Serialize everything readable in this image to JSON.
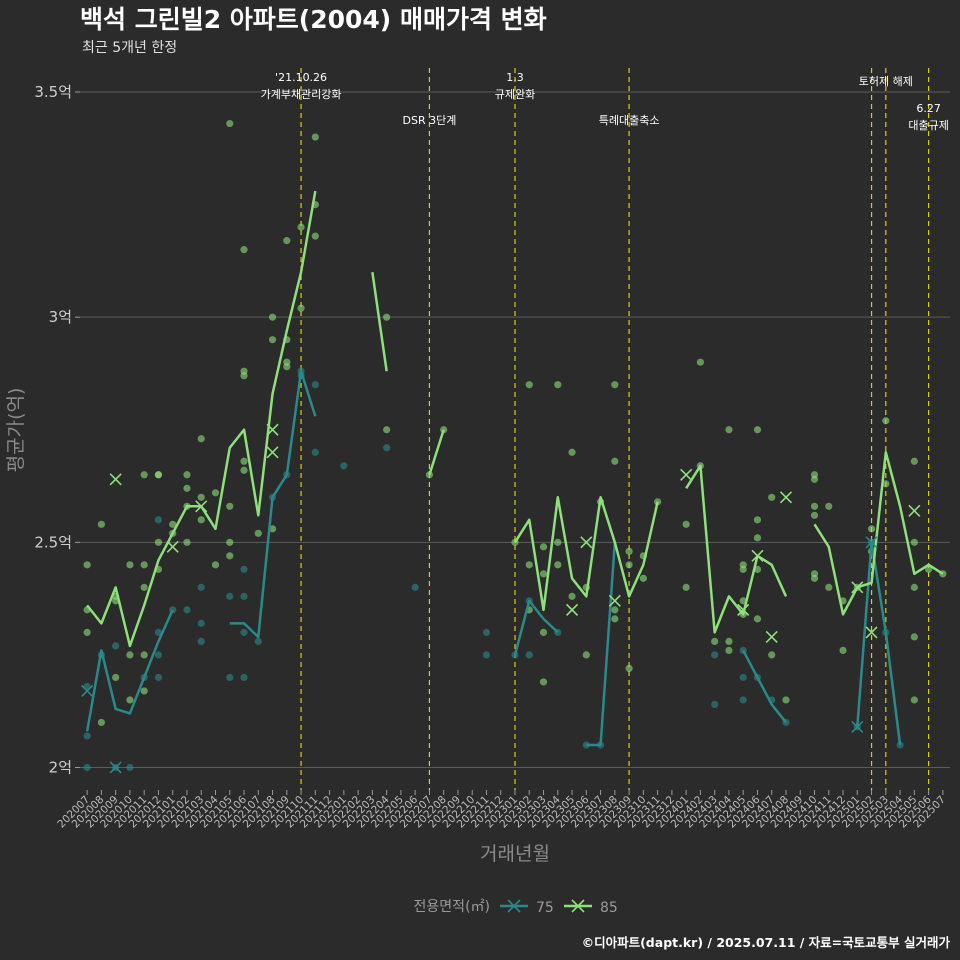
{
  "chart_data": {
    "type": "line",
    "title": "백석 그린빌2 아파트(2004) 매매가격 변화",
    "subtitle": "최근 5개년 한정",
    "xlabel": "거래년월",
    "ylabel": "평균가(억)",
    "categories": [
      "202007",
      "202008",
      "202009",
      "202010",
      "202011",
      "202012",
      "202101",
      "202102",
      "202103",
      "202104",
      "202105",
      "202106",
      "202107",
      "202108",
      "202109",
      "202110",
      "202111",
      "202112",
      "202201",
      "202202",
      "202203",
      "202204",
      "202205",
      "202206",
      "202207",
      "202208",
      "202209",
      "202210",
      "202211",
      "202212",
      "202301",
      "202302",
      "202303",
      "202304",
      "202305",
      "202306",
      "202307",
      "202308",
      "202309",
      "202310",
      "202311",
      "202312",
      "202401",
      "202402",
      "202403",
      "202404",
      "202405",
      "202406",
      "202407",
      "202408",
      "202409",
      "202410",
      "202411",
      "202412",
      "202501",
      "202502",
      "202503",
      "202504",
      "202505",
      "202506",
      "202507"
    ],
    "yticks": [
      {
        "value": 2.0,
        "label": "2억"
      },
      {
        "value": 2.5,
        "label": "2.5억"
      },
      {
        "value": 3.0,
        "label": "3억"
      },
      {
        "value": 3.5,
        "label": "3.5억"
      }
    ],
    "ylim": [
      1.95,
      3.56
    ],
    "grid": true,
    "legend": {
      "title": "전용면적(㎡)",
      "position": "bottom",
      "entries": [
        {
          "name": "75",
          "color": "#2a8a8a"
        },
        {
          "name": "85",
          "color": "#8ee07a"
        }
      ]
    },
    "events": [
      {
        "month": "202110",
        "lines": [
          "'21.10.26",
          "가계부채관리강화"
        ],
        "tier": 1
      },
      {
        "month": "202207",
        "lines": [
          "DSR 3단계"
        ],
        "tier": 2
      },
      {
        "month": "202301",
        "lines": [
          "1.3",
          "규제완화"
        ],
        "tier": 1
      },
      {
        "month": "202309",
        "lines": [
          "특례대출축소"
        ],
        "tier": 2
      },
      {
        "month": "202502",
        "lines": [],
        "tier": 1
      },
      {
        "month": "202503",
        "lines": [
          "토허제 해제"
        ],
        "tier": 1
      },
      {
        "month": "202506",
        "lines": [
          "6.27",
          "대출규제"
        ],
        "tier": 3
      }
    ],
    "series": [
      {
        "name": "75",
        "color": "#2a8a8a",
        "values": [
          2.08,
          2.26,
          2.13,
          2.12,
          2.2,
          2.28,
          2.35,
          null,
          2.35,
          null,
          2.32,
          2.32,
          2.29,
          2.6,
          2.65,
          2.88,
          2.78,
          null,
          null,
          null,
          null,
          null,
          null,
          null,
          null,
          null,
          null,
          null,
          null,
          null,
          2.25,
          2.37,
          2.33,
          2.3,
          null,
          2.05,
          2.05,
          2.5,
          null,
          null,
          null,
          null,
          null,
          null,
          2.2,
          null,
          2.26,
          2.2,
          2.14,
          2.1,
          null,
          null,
          null,
          null,
          2.09,
          2.5,
          2.3,
          2.05,
          null,
          null,
          null
        ],
        "markers": [
          [
            0,
            2.17
          ],
          [
            2,
            2.0
          ],
          [
            55,
            2.5
          ],
          [
            54,
            2.09
          ]
        ],
        "points": [
          [
            0,
            2.07
          ],
          [
            0,
            2.0
          ],
          [
            0,
            2.18
          ],
          [
            1,
            2.25
          ],
          [
            2,
            2.0
          ],
          [
            2,
            2.27
          ],
          [
            3,
            2.0
          ],
          [
            4,
            2.2
          ],
          [
            5,
            2.25
          ],
          [
            5,
            2.2
          ],
          [
            5,
            2.3
          ],
          [
            5,
            2.55
          ],
          [
            6,
            2.35
          ],
          [
            7,
            2.35
          ],
          [
            8,
            2.4
          ],
          [
            8,
            2.28
          ],
          [
            8,
            2.32
          ],
          [
            10,
            2.38
          ],
          [
            10,
            2.2
          ],
          [
            11,
            2.38
          ],
          [
            11,
            2.2
          ],
          [
            11,
            2.3
          ],
          [
            11,
            2.44
          ],
          [
            12,
            2.28
          ],
          [
            13,
            2.6
          ],
          [
            14,
            2.65
          ],
          [
            15,
            2.87
          ],
          [
            15,
            2.88
          ],
          [
            16,
            2.85
          ],
          [
            16,
            2.7
          ],
          [
            18,
            2.67
          ],
          [
            21,
            2.71
          ],
          [
            23,
            2.4
          ],
          [
            28,
            2.3
          ],
          [
            28,
            2.25
          ],
          [
            30,
            2.25
          ],
          [
            31,
            2.25
          ],
          [
            31,
            2.37
          ],
          [
            33,
            2.3
          ],
          [
            35,
            2.05
          ],
          [
            36,
            2.05
          ],
          [
            44,
            2.14
          ],
          [
            44,
            2.25
          ],
          [
            46,
            2.15
          ],
          [
            46,
            2.26
          ],
          [
            46,
            2.2
          ],
          [
            47,
            2.2
          ],
          [
            48,
            2.15
          ],
          [
            49,
            2.1
          ],
          [
            54,
            2.09
          ],
          [
            55,
            2.5
          ],
          [
            56,
            2.3
          ],
          [
            57,
            2.05
          ]
        ]
      },
      {
        "name": "85",
        "color": "#8ee07a",
        "values": [
          2.36,
          2.32,
          2.4,
          2.27,
          2.36,
          2.46,
          2.52,
          2.58,
          2.58,
          2.53,
          2.71,
          2.75,
          2.56,
          2.83,
          2.97,
          3.1,
          3.28,
          null,
          null,
          null,
          3.1,
          2.88,
          null,
          null,
          2.65,
          2.75,
          null,
          null,
          2.5,
          null,
          2.5,
          2.55,
          2.35,
          2.6,
          2.42,
          2.38,
          2.6,
          2.5,
          2.38,
          2.45,
          2.59,
          null,
          2.62,
          2.67,
          2.3,
          2.38,
          2.34,
          2.47,
          2.45,
          2.38,
          null,
          2.54,
          2.49,
          2.34,
          2.4,
          2.41,
          2.7,
          2.58,
          2.43,
          2.45,
          2.43
        ],
        "markers": [
          [
            2,
            2.64
          ],
          [
            6,
            2.49
          ],
          [
            8,
            2.58
          ],
          [
            13,
            2.75
          ],
          [
            13,
            2.7
          ],
          [
            34,
            2.35
          ],
          [
            35,
            2.5
          ],
          [
            37,
            2.37
          ],
          [
            42,
            2.65
          ],
          [
            46,
            2.35
          ],
          [
            47,
            2.47
          ],
          [
            48,
            2.29
          ],
          [
            49,
            2.6
          ],
          [
            54,
            2.4
          ],
          [
            55,
            2.3
          ],
          [
            58,
            2.57
          ]
        ],
        "points": [
          [
            0,
            2.45
          ],
          [
            0,
            2.3
          ],
          [
            0,
            2.35
          ],
          [
            1,
            2.54
          ],
          [
            1,
            2.1
          ],
          [
            2,
            2.38
          ],
          [
            2,
            2.37
          ],
          [
            2,
            2.2
          ],
          [
            3,
            2.45
          ],
          [
            3,
            2.25
          ],
          [
            3,
            2.15
          ],
          [
            4,
            2.45
          ],
          [
            4,
            2.4
          ],
          [
            4,
            2.65
          ],
          [
            4,
            2.25
          ],
          [
            4,
            2.17
          ],
          [
            5,
            2.65
          ],
          [
            5,
            2.65
          ],
          [
            5,
            2.5
          ],
          [
            5,
            2.44
          ],
          [
            6,
            2.54
          ],
          [
            6,
            2.52
          ],
          [
            7,
            2.65
          ],
          [
            7,
            2.62
          ],
          [
            7,
            2.58
          ],
          [
            7,
            2.5
          ],
          [
            8,
            2.73
          ],
          [
            8,
            2.55
          ],
          [
            8,
            2.6
          ],
          [
            9,
            2.61
          ],
          [
            9,
            2.45
          ],
          [
            10,
            3.43
          ],
          [
            10,
            2.58
          ],
          [
            10,
            2.5
          ],
          [
            10,
            2.47
          ],
          [
            11,
            3.15
          ],
          [
            11,
            2.88
          ],
          [
            11,
            2.87
          ],
          [
            11,
            2.68
          ],
          [
            11,
            2.66
          ],
          [
            12,
            2.52
          ],
          [
            13,
            3.0
          ],
          [
            13,
            2.95
          ],
          [
            13,
            2.53
          ],
          [
            14,
            3.17
          ],
          [
            14,
            2.95
          ],
          [
            14,
            2.9
          ],
          [
            14,
            2.89
          ],
          [
            15,
            3.2
          ],
          [
            15,
            3.02
          ],
          [
            16,
            3.4
          ],
          [
            16,
            3.25
          ],
          [
            16,
            3.18
          ],
          [
            21,
            3.0
          ],
          [
            21,
            2.75
          ],
          [
            24,
            2.65
          ],
          [
            25,
            2.75
          ],
          [
            30,
            2.5
          ],
          [
            31,
            2.85
          ],
          [
            31,
            2.45
          ],
          [
            31,
            2.35
          ],
          [
            32,
            2.49
          ],
          [
            32,
            2.43
          ],
          [
            32,
            2.3
          ],
          [
            32,
            2.19
          ],
          [
            33,
            2.85
          ],
          [
            33,
            2.5
          ],
          [
            33,
            2.45
          ],
          [
            34,
            2.7
          ],
          [
            34,
            2.38
          ],
          [
            35,
            2.4
          ],
          [
            35,
            2.25
          ],
          [
            36,
            2.59
          ],
          [
            37,
            2.85
          ],
          [
            37,
            2.68
          ],
          [
            37,
            2.35
          ],
          [
            37,
            2.33
          ],
          [
            38,
            2.48
          ],
          [
            38,
            2.45
          ],
          [
            38,
            2.22
          ],
          [
            39,
            2.47
          ],
          [
            39,
            2.42
          ],
          [
            40,
            2.59
          ],
          [
            42,
            2.54
          ],
          [
            42,
            2.4
          ],
          [
            43,
            2.9
          ],
          [
            43,
            2.67
          ],
          [
            44,
            2.28
          ],
          [
            45,
            2.75
          ],
          [
            45,
            2.28
          ],
          [
            45,
            2.26
          ],
          [
            46,
            2.45
          ],
          [
            46,
            2.44
          ],
          [
            46,
            2.37
          ],
          [
            46,
            2.34
          ],
          [
            47,
            2.75
          ],
          [
            47,
            2.55
          ],
          [
            47,
            2.51
          ],
          [
            47,
            2.44
          ],
          [
            47,
            2.33
          ],
          [
            48,
            2.6
          ],
          [
            48,
            2.25
          ],
          [
            49,
            2.15
          ],
          [
            51,
            2.65
          ],
          [
            51,
            2.64
          ],
          [
            51,
            2.58
          ],
          [
            51,
            2.56
          ],
          [
            51,
            2.43
          ],
          [
            51,
            2.42
          ],
          [
            52,
            2.58
          ],
          [
            52,
            2.4
          ],
          [
            53,
            2.37
          ],
          [
            53,
            2.26
          ],
          [
            54,
            2.4
          ],
          [
            55,
            2.53
          ],
          [
            55,
            2.48
          ],
          [
            56,
            2.77
          ],
          [
            56,
            2.63
          ],
          [
            58,
            2.68
          ],
          [
            58,
            2.5
          ],
          [
            58,
            2.4
          ],
          [
            58,
            2.29
          ],
          [
            58,
            2.15
          ],
          [
            59,
            2.44
          ],
          [
            60,
            2.43
          ]
        ]
      }
    ]
  },
  "caption": "©디아파트(dapt.kr) / 2025.07.11 / 자료=국토교통부 실거래가"
}
